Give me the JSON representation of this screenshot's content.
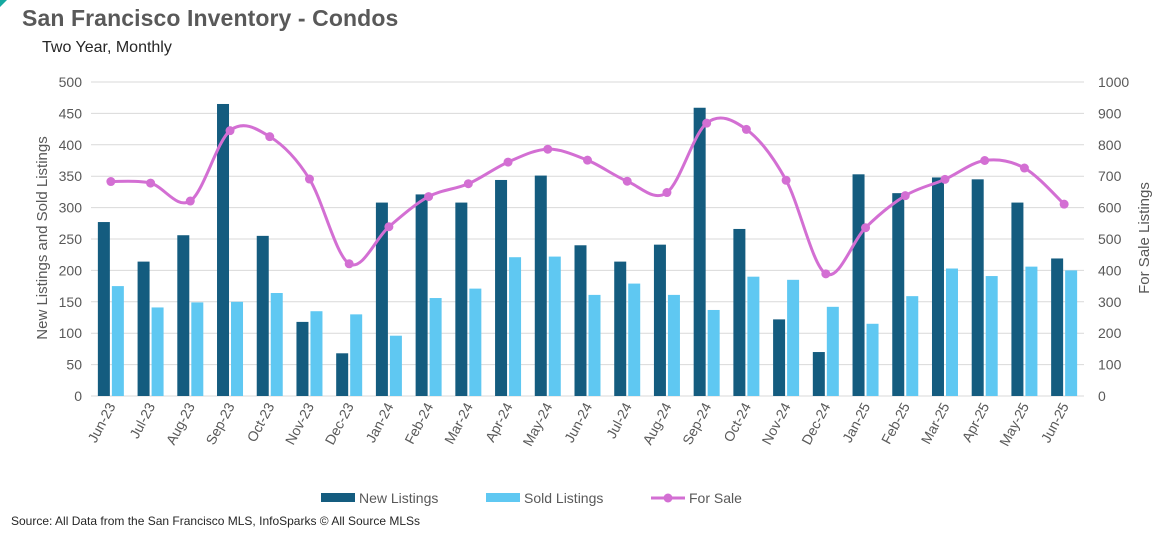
{
  "title": "San Francisco Inventory - Condos",
  "subtitle": "Two Year, Monthly",
  "source": "Source: All Data from the San Francisco MLS, InfoSparks © All Source MLSs",
  "colors": {
    "new_listings": "#145c7f",
    "sold_listings": "#5fc8f2",
    "for_sale": "#d36fd3",
    "grid": "#d9d9d9",
    "axis_text": "#595959"
  },
  "chart_data": {
    "type": "bar",
    "categories": [
      "Jun-23",
      "Jul-23",
      "Aug-23",
      "Sep-23",
      "Oct-23",
      "Nov-23",
      "Dec-23",
      "Jan-24",
      "Feb-24",
      "Mar-24",
      "Apr-24",
      "May-24",
      "Jun-24",
      "Jul-24",
      "Aug-24",
      "Sep-24",
      "Oct-24",
      "Nov-24",
      "Dec-24",
      "Jan-25",
      "Feb-25",
      "Mar-25",
      "Apr-25",
      "May-25",
      "Jun-25"
    ],
    "series": [
      {
        "name": "New Listings",
        "type": "bar",
        "axis": "left",
        "values": [
          277,
          214,
          256,
          465,
          255,
          118,
          68,
          308,
          321,
          308,
          344,
          351,
          240,
          214,
          241,
          459,
          266,
          122,
          70,
          353,
          323,
          348,
          345,
          308,
          219
        ]
      },
      {
        "name": "Sold Listings",
        "type": "bar",
        "axis": "left",
        "values": [
          175,
          141,
          149,
          150,
          164,
          135,
          130,
          96,
          156,
          171,
          221,
          222,
          161,
          179,
          161,
          137,
          190,
          185,
          142,
          115,
          159,
          203,
          191,
          206,
          200
        ]
      },
      {
        "name": "For Sale",
        "type": "line",
        "smooth": true,
        "axis": "right",
        "values": [
          683,
          678,
          621,
          845,
          826,
          691,
          421,
          539,
          635,
          676,
          745,
          786,
          751,
          684,
          648,
          869,
          849,
          687,
          389,
          536,
          638,
          690,
          750,
          726,
          611
        ]
      }
    ],
    "ylabel": "New Listings and Sold Listings",
    "y2label": "For Sale Listings",
    "ylim": [
      0,
      500
    ],
    "y2lim": [
      0,
      1000
    ],
    "yticks": [
      0,
      50,
      100,
      150,
      200,
      250,
      300,
      350,
      400,
      450,
      500
    ],
    "y2ticks": [
      0,
      100,
      200,
      300,
      400,
      500,
      600,
      700,
      800,
      900,
      1000
    ],
    "grid": true,
    "legend": "bottom"
  }
}
